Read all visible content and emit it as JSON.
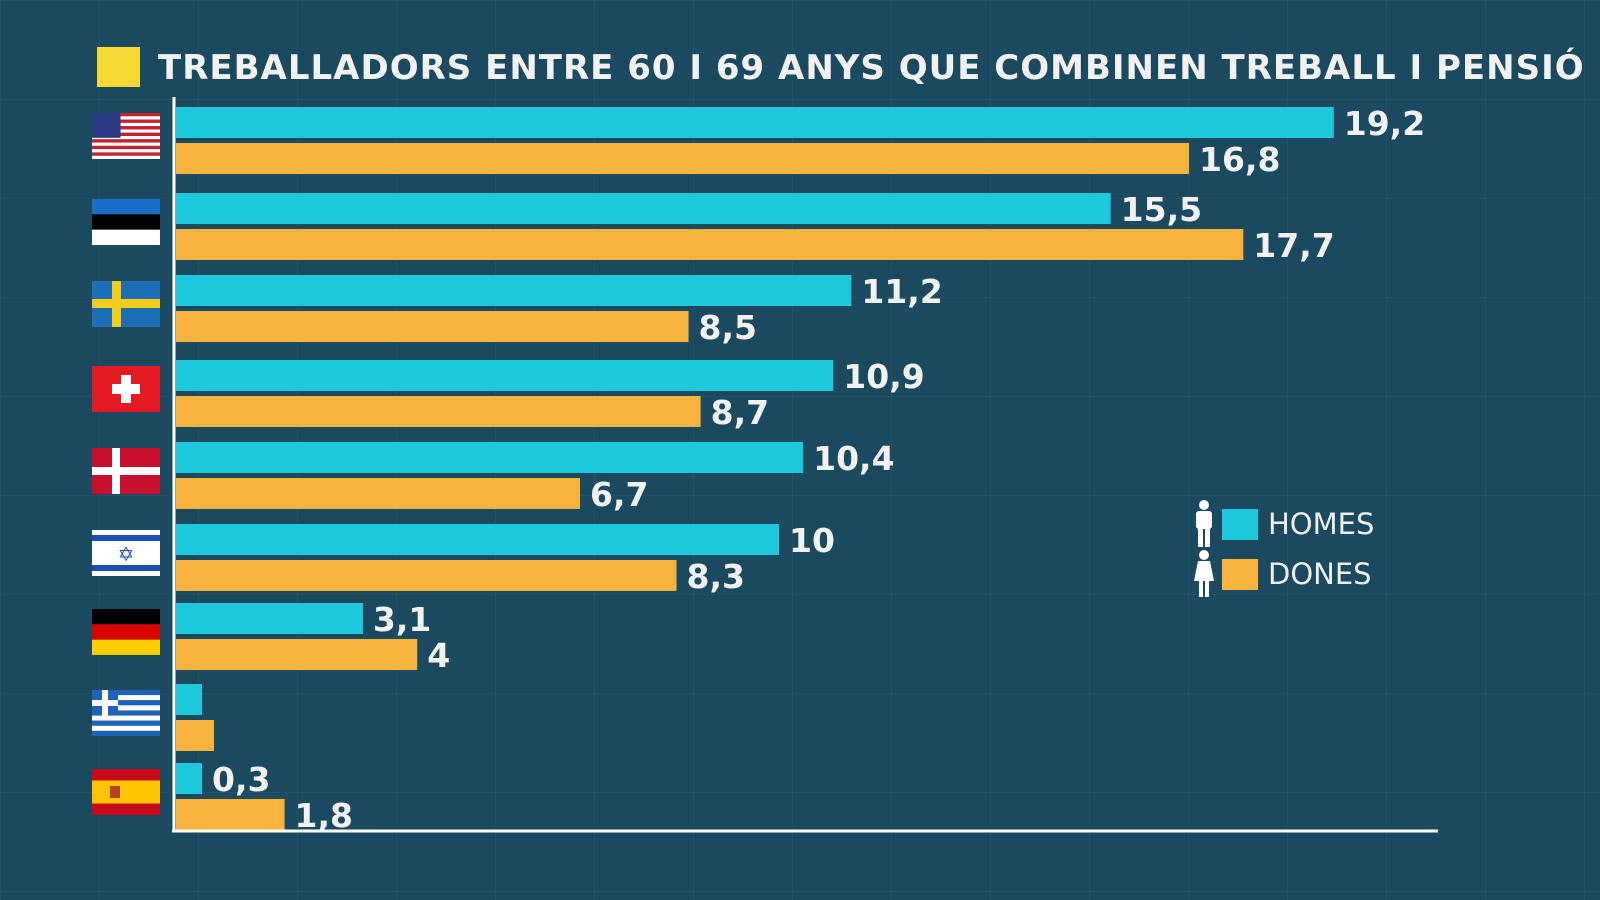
{
  "chart_data": {
    "type": "bar",
    "orientation": "horizontal",
    "title": "TREBALLADORS ENTRE 60 I 69 ANYS QUE COMBINEN TREBALL I PENSIÓ",
    "categories": [
      "flag-united-states",
      "flag-estonia",
      "flag-sweden",
      "flag-switzerland",
      "flag-denmark",
      "flag-israel",
      "flag-germany",
      "flag-greece",
      "flag-spain"
    ],
    "series": [
      {
        "name": "HOMES",
        "color": "#1ec8dc",
        "values": [
          19.2,
          15.5,
          11.2,
          10.9,
          10.4,
          10,
          3.1,
          0.4,
          0.3
        ],
        "labels": [
          "19,2",
          "15,5",
          "11,2",
          "10,9",
          "10,4",
          "10",
          "3,1",
          "",
          "0,3"
        ]
      },
      {
        "name": "DONES",
        "color": "#f6b43e",
        "values": [
          16.8,
          17.7,
          8.5,
          8.7,
          6.7,
          8.3,
          4,
          0.6,
          1.8
        ],
        "labels": [
          "16,8",
          "17,7",
          "8,5",
          "8,7",
          "6,7",
          "8,3",
          "4",
          "",
          "1,8"
        ]
      }
    ],
    "xlim": [
      0,
      21
    ],
    "grid": false,
    "legend_position": "right",
    "legend_icons": [
      "man-icon",
      "woman-icon"
    ],
    "title_square_color": "#f5d831"
  }
}
